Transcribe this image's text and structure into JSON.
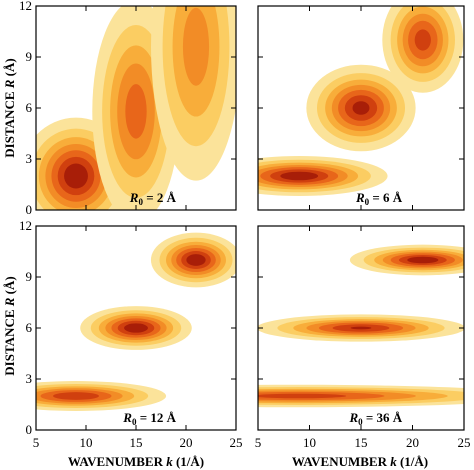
{
  "figure": {
    "xlabel_prefix": "WAVENUMBER ",
    "xlabel_var": "k",
    "xlabel_unit": " (1/Å)",
    "ylabel_prefix": "DISTANCE ",
    "ylabel_var": "R",
    "ylabel_unit": " (Å)"
  },
  "chart_data": [
    {
      "type": "heatmap",
      "panel": "top-left",
      "label_var": "R",
      "label_sub": "0",
      "label_value": " = 2 Å",
      "xlim": [
        5,
        25
      ],
      "ylim": [
        0,
        12
      ],
      "xticks": [
        "5",
        "10",
        "15",
        "20",
        "25"
      ],
      "yticks": [
        "0",
        "3",
        "6",
        "9",
        "12"
      ],
      "show_xticks": false,
      "show_yticks": true,
      "blobs": [
        {
          "kx": 9,
          "ry": 2,
          "sk": 2.6,
          "sr": 1.6,
          "amp": 1.0
        },
        {
          "kx": 15,
          "ry": 5.8,
          "sk": 2.2,
          "sr": 3.3,
          "amp": 0.72
        },
        {
          "kx": 21,
          "ry": 9.6,
          "sk": 2.4,
          "sr": 4.2,
          "amp": 0.58
        }
      ]
    },
    {
      "type": "heatmap",
      "panel": "top-right",
      "label_var": "R",
      "label_sub": "0",
      "label_value": " = 6 Å",
      "xlim": [
        5,
        25
      ],
      "ylim": [
        0,
        12
      ],
      "xticks": [
        "5",
        "10",
        "15",
        "20",
        "25"
      ],
      "yticks": [
        "0",
        "3",
        "6",
        "9",
        "12"
      ],
      "show_xticks": false,
      "show_yticks": false,
      "blobs": [
        {
          "kx": 9,
          "ry": 2,
          "sk": 4.0,
          "sr": 0.55,
          "amp": 1.0
        },
        {
          "kx": 15,
          "ry": 6,
          "sk": 2.5,
          "sr": 1.2,
          "amp": 0.95
        },
        {
          "kx": 21,
          "ry": 10,
          "sk": 1.9,
          "sr": 1.5,
          "amp": 0.85
        }
      ]
    },
    {
      "type": "heatmap",
      "panel": "bottom-left",
      "label_var": "R",
      "label_sub": "0",
      "label_value": " = 12 Å",
      "xlim": [
        5,
        25
      ],
      "ylim": [
        0,
        12
      ],
      "xticks": [
        "5",
        "10",
        "15",
        "20",
        "25"
      ],
      "yticks": [
        "0",
        "3",
        "6",
        "9",
        "12"
      ],
      "show_xticks": true,
      "show_yticks": true,
      "blobs": [
        {
          "kx": 9,
          "ry": 2,
          "sk": 4.3,
          "sr": 0.42,
          "amp": 0.9
        },
        {
          "kx": 15,
          "ry": 6,
          "sk": 2.6,
          "sr": 0.6,
          "amp": 1.0
        },
        {
          "kx": 21,
          "ry": 10,
          "sk": 2.1,
          "sr": 0.75,
          "amp": 1.0
        }
      ]
    },
    {
      "type": "heatmap",
      "panel": "bottom-right",
      "label_var": "R",
      "label_sub": "0",
      "label_value": " = 36 Å",
      "xlim": [
        5,
        25
      ],
      "ylim": [
        0,
        12
      ],
      "xticks": [
        "5",
        "10",
        "15",
        "20",
        "25"
      ],
      "yticks": [
        "0",
        "3",
        "6",
        "9",
        "12"
      ],
      "show_xticks": true,
      "show_yticks": false,
      "blobs": [
        {
          "kx": 9,
          "ry": 2,
          "sk": 11.0,
          "sr": 0.32,
          "amp": 0.85
        },
        {
          "kx": 15,
          "ry": 6,
          "sk": 4.8,
          "sr": 0.38,
          "amp": 0.92
        },
        {
          "kx": 21,
          "ry": 10,
          "sk": 3.3,
          "sr": 0.42,
          "amp": 1.0
        }
      ]
    }
  ],
  "contour_levels": [
    0.1,
    0.22,
    0.36,
    0.5,
    0.64,
    0.78,
    0.9
  ],
  "contour_colors": [
    "#fbe39a",
    "#fbcd62",
    "#f8ad3a",
    "#f28c26",
    "#e8661a",
    "#d0400f",
    "#a81e08"
  ]
}
